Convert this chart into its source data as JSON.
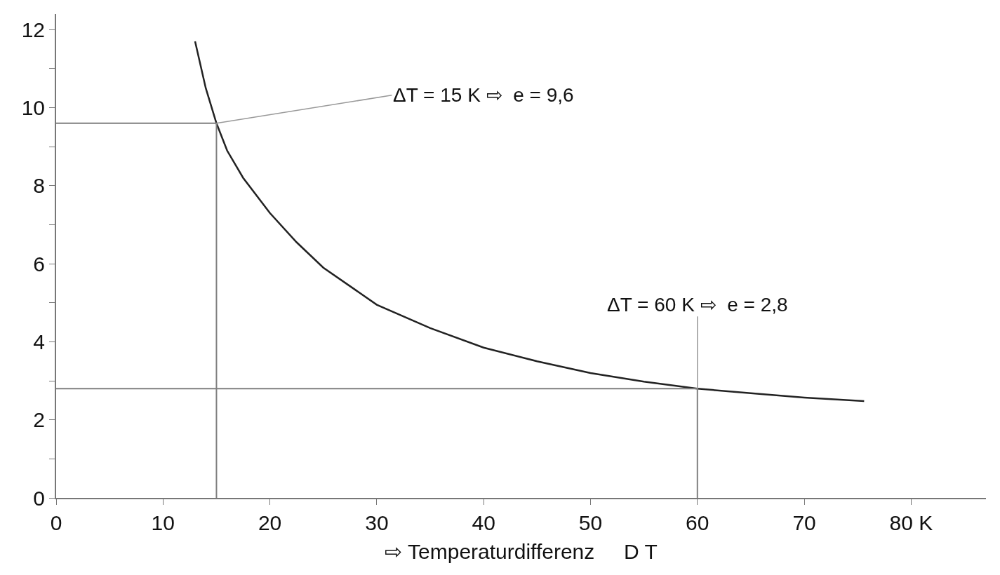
{
  "chart_data": {
    "type": "line",
    "xlabel": "⇨ Temperaturdifferenz     D T",
    "series": [
      {
        "color": "#222222",
        "x": [
          13,
          14,
          15,
          16,
          17.5,
          20,
          22.5,
          25,
          30,
          35,
          40,
          45,
          50,
          55,
          60,
          65,
          70,
          75.6
        ],
        "values": [
          11.7,
          10.5,
          9.6,
          8.9,
          8.2,
          7.3,
          6.55,
          5.9,
          4.95,
          4.35,
          3.85,
          3.5,
          3.2,
          2.98,
          2.8,
          2.68,
          2.57,
          2.48
        ]
      },
      {
        "color": "#808080",
        "x": [
          0,
          15,
          15
        ],
        "values": [
          9.6,
          9.6,
          0
        ]
      },
      {
        "color": "#808080",
        "x": [
          0,
          60,
          60
        ],
        "values": [
          2.8,
          2.8,
          0
        ]
      }
    ],
    "annotations": [
      {
        "text": "ΔT = 15 K ⇨  e = 9,6",
        "x": 15,
        "y": 9.6
      },
      {
        "text": "ΔT = 60 K ⇨  e = 2,8",
        "x": 60,
        "y": 2.8
      }
    ],
    "xlim": [
      0,
      87
    ],
    "xticks": [
      0,
      10,
      20,
      30,
      40,
      50,
      60,
      70,
      {
        "value": 80,
        "label": "80 K"
      }
    ],
    "ylim": [
      0,
      12.4
    ],
    "yticks": [
      0,
      {
        "value": 1,
        "label": null
      },
      2,
      {
        "value": 3,
        "label": null
      },
      4,
      {
        "value": 5,
        "label": null
      },
      6,
      {
        "value": 7,
        "label": null
      },
      8,
      {
        "value": 9,
        "label": null
      },
      10,
      {
        "value": 11,
        "label": null
      },
      12
    ],
    "marker": "none",
    "line_style": "solid"
  }
}
